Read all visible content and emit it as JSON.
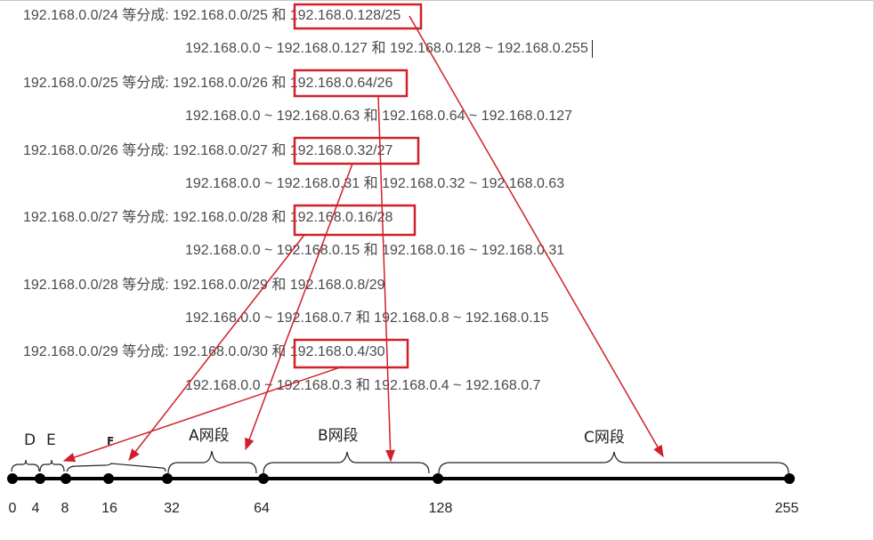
{
  "lines": [
    "192.168.0.0/24 等分成: 192.168.0.0/25 和 192.168.0.128/25",
    "192.168.0.0 ~ 192.168.0.127 和 192.168.0.128 ~ 192.168.0.255",
    "192.168.0.0/25 等分成: 192.168.0.0/26 和 192.168.0.64/26",
    "192.168.0.0 ~ 192.168.0.63 和 192.168.0.64 ~ 192.168.0.127",
    "192.168.0.0/26 等分成: 192.168.0.0/27 和 192.168.0.32/27",
    "192.168.0.0 ~ 192.168.0.31 和 192.168.0.32 ~ 192.168.0.63",
    "192.168.0.0/27 等分成: 192.168.0.0/28 和 192.168.0.16/28",
    "192.168.0.0 ~ 192.168.0.15 和 192.168.0.16 ~ 192.168.0.31",
    "192.168.0.0/28 等分成: 192.168.0.0/29 和 192.168.0.8/29",
    "192.168.0.0 ~ 192.168.0.7 和 192.168.0.8 ~ 192.168.0.15",
    "192.168.0.0/29 等分成: 192.168.0.0/30 和 192.168.0.4/30",
    "192.168.0.0 ~ 192.168.0.3 和 192.168.0.4 ~ 192.168.0.7"
  ],
  "segments": {
    "d": "D",
    "e": "E",
    "f": "F",
    "a": "A网段",
    "b": "B网段",
    "c": "C网段"
  },
  "ticks": [
    "0",
    "4",
    "8",
    "16",
    "32",
    "64",
    "128",
    "255"
  ],
  "colors": {
    "highlight": "#d0202a",
    "axis": "#000000",
    "text": "#4a4a4a"
  }
}
